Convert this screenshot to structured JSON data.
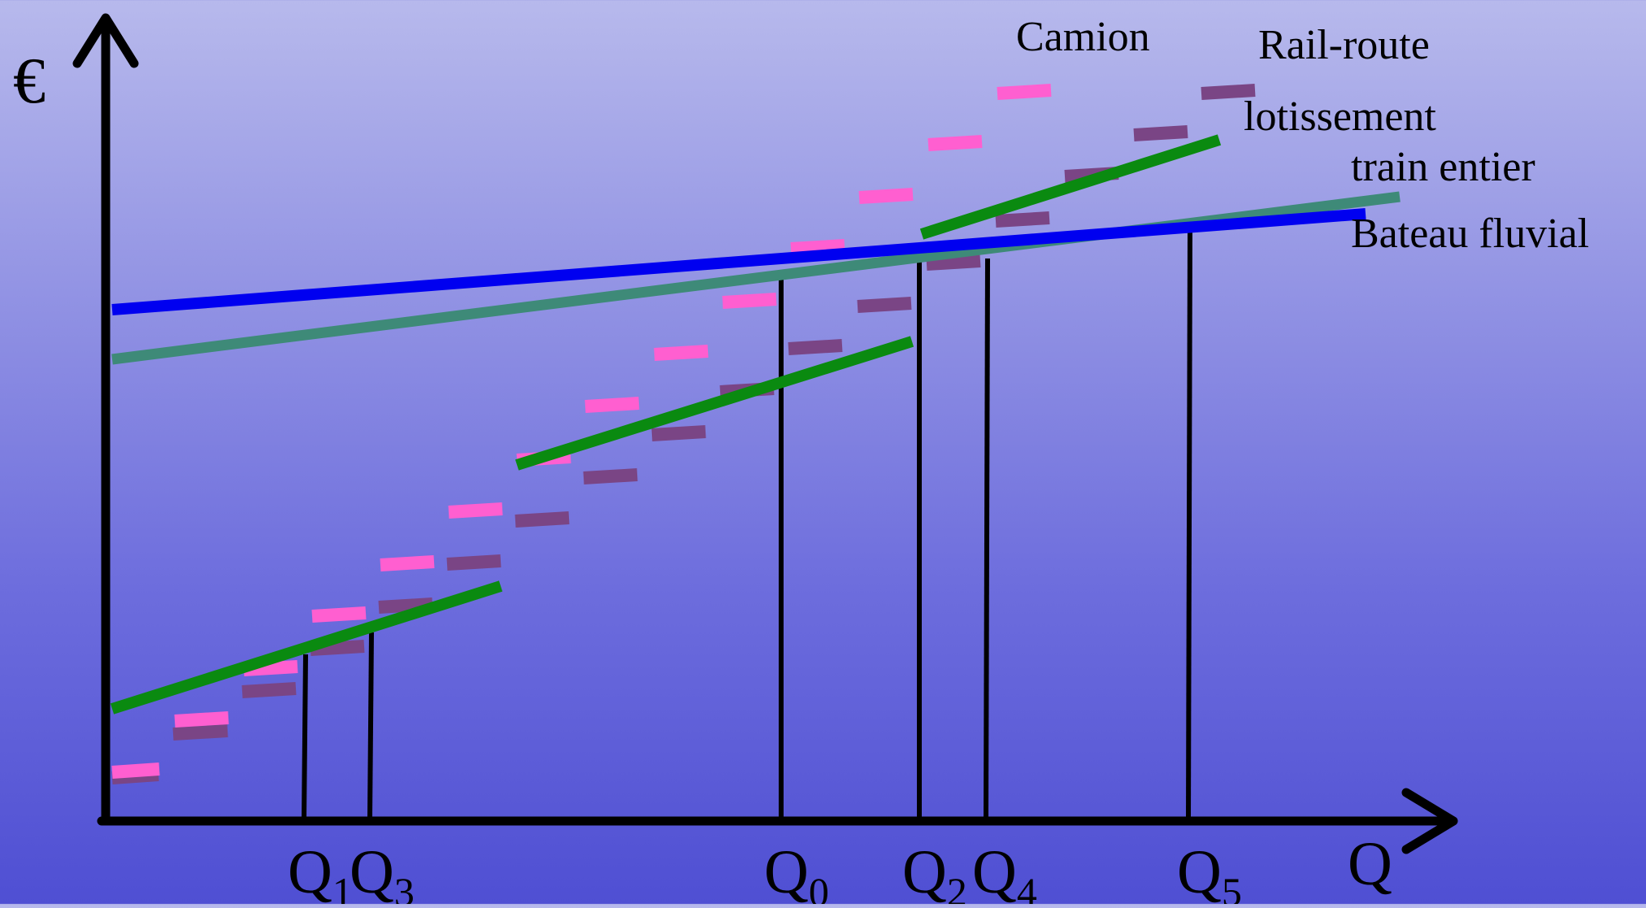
{
  "axes": {
    "y_label": "€",
    "x_label": "Q"
  },
  "labels": {
    "camion": "Camion",
    "rail_route": "Rail-route",
    "lotissement": "lotissement",
    "train_entier": "train entier",
    "bateau_fluvial": "Bateau fluvial"
  },
  "ticks": [
    {
      "id": "q1",
      "main": "Q",
      "sub": "1"
    },
    {
      "id": "q3",
      "main": "Q",
      "sub": "3"
    },
    {
      "id": "q0",
      "main": "Q",
      "sub": "0"
    },
    {
      "id": "q2",
      "main": "Q",
      "sub": "2"
    },
    {
      "id": "q4",
      "main": "Q",
      "sub": "4"
    },
    {
      "id": "q5",
      "main": "Q",
      "sub": "5"
    }
  ],
  "colors": {
    "camion": "#ff5fd0",
    "rail_route": "#7a4585",
    "lotissement": "#0a8a10",
    "train_entier": "#3e8a78",
    "bateau_fluvial": "#0000f0",
    "axis": "#000000"
  }
}
